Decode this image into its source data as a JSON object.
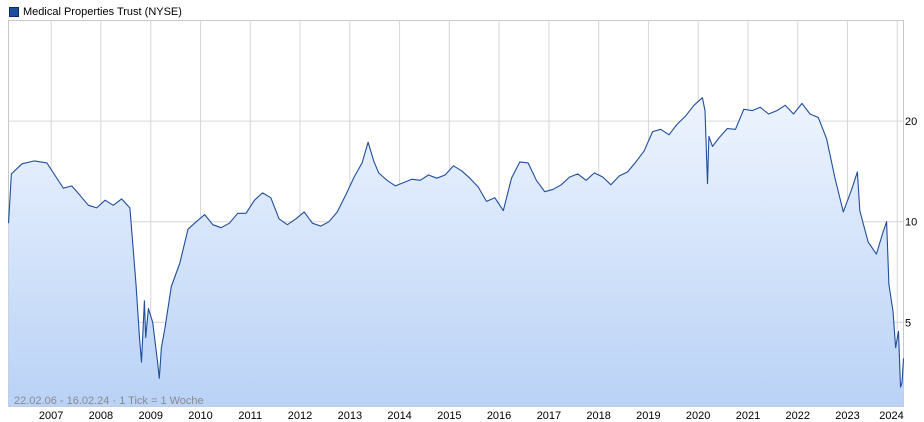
{
  "chart_data": {
    "type": "area",
    "title": "Medical Properties Trust (NYSE)",
    "legend": "top-left",
    "scale": "log",
    "grid": true,
    "range_note": "22.02.06 - 16.02.24 · 1 Tick = 1 Woche",
    "x_ticks": [
      "2007",
      "2008",
      "2009",
      "2010",
      "2011",
      "2012",
      "2013",
      "2014",
      "2015",
      "2016",
      "2017",
      "2018",
      "2019",
      "2020",
      "2021",
      "2022",
      "2023",
      "2024"
    ],
    "y_ticks": [
      "5",
      "10",
      "20"
    ],
    "ylim": [
      2.8,
      40
    ],
    "series": [
      {
        "name": "Medical Properties Trust (NYSE)",
        "color": "#1f4e9c",
        "fill_top": "#eef4fe",
        "fill_bottom": "#b9d2f6",
        "x": [
          "2006-02-22",
          "2006-03-15",
          "2006-06-01",
          "2006-09-01",
          "2006-12-01",
          "2007-02-01",
          "2007-04-01",
          "2007-06-01",
          "2007-08-01",
          "2007-10-01",
          "2007-12-01",
          "2008-02-01",
          "2008-04-01",
          "2008-06-01",
          "2008-08-01",
          "2008-09-15",
          "2008-10-10",
          "2008-10-25",
          "2008-11-15",
          "2008-11-25",
          "2008-12-15",
          "2009-01-15",
          "2009-02-20",
          "2009-03-05",
          "2009-03-20",
          "2009-04-15",
          "2009-06-01",
          "2009-08-01",
          "2009-10-01",
          "2009-12-01",
          "2010-02-01",
          "2010-04-01",
          "2010-06-01",
          "2010-08-01",
          "2010-10-01",
          "2010-12-01",
          "2011-02-01",
          "2011-04-01",
          "2011-06-01",
          "2011-08-01",
          "2011-10-01",
          "2011-12-01",
          "2012-02-01",
          "2012-04-01",
          "2012-06-01",
          "2012-08-01",
          "2012-10-01",
          "2012-12-01",
          "2013-02-01",
          "2013-04-01",
          "2013-05-15",
          "2013-06-25",
          "2013-08-01",
          "2013-10-01",
          "2013-12-01",
          "2014-02-01",
          "2014-04-01",
          "2014-06-01",
          "2014-08-01",
          "2014-10-01",
          "2014-12-01",
          "2015-02-01",
          "2015-04-01",
          "2015-06-01",
          "2015-08-01",
          "2015-10-01",
          "2015-12-01",
          "2016-02-01",
          "2016-04-01",
          "2016-06-01",
          "2016-08-01",
          "2016-10-01",
          "2016-12-01",
          "2017-02-01",
          "2017-04-01",
          "2017-06-01",
          "2017-08-01",
          "2017-10-01",
          "2017-12-01",
          "2018-02-01",
          "2018-04-01",
          "2018-06-01",
          "2018-08-01",
          "2018-10-01",
          "2018-12-01",
          "2019-02-01",
          "2019-04-01",
          "2019-06-01",
          "2019-08-01",
          "2019-10-01",
          "2019-12-01",
          "2020-02-01",
          "2020-02-20",
          "2020-03-10",
          "2020-03-20",
          "2020-04-15",
          "2020-06-01",
          "2020-08-01",
          "2020-10-01",
          "2020-12-01",
          "2021-02-01",
          "2021-04-01",
          "2021-06-01",
          "2021-08-01",
          "2021-10-01",
          "2021-12-01",
          "2022-02-01",
          "2022-04-01",
          "2022-06-01",
          "2022-08-01",
          "2022-10-01",
          "2022-12-01",
          "2023-02-01",
          "2023-03-15",
          "2023-04-01",
          "2023-06-01",
          "2023-08-01",
          "2023-09-15",
          "2023-10-15",
          "2023-11-01",
          "2023-12-01",
          "2023-12-20",
          "2024-01-10",
          "2024-01-25",
          "2024-02-05",
          "2024-02-16"
        ],
        "values": [
          9.9,
          13.9,
          14.9,
          15.2,
          15.0,
          13.7,
          12.6,
          12.8,
          12.0,
          11.2,
          11.0,
          11.6,
          11.2,
          11.7,
          11.0,
          6.5,
          4.5,
          3.8,
          5.8,
          4.5,
          5.5,
          5.0,
          3.8,
          3.4,
          4.2,
          4.8,
          6.4,
          7.5,
          9.5,
          10.0,
          10.5,
          9.8,
          9.6,
          9.9,
          10.6,
          10.6,
          11.6,
          12.2,
          11.8,
          10.2,
          9.8,
          10.2,
          10.7,
          9.9,
          9.7,
          10.0,
          10.7,
          12.0,
          13.6,
          15.0,
          17.3,
          15.2,
          14.0,
          13.3,
          12.8,
          13.1,
          13.4,
          13.3,
          13.8,
          13.5,
          13.8,
          14.7,
          14.2,
          13.5,
          12.7,
          11.5,
          11.8,
          10.8,
          13.5,
          15.1,
          15.0,
          13.3,
          12.3,
          12.5,
          12.9,
          13.6,
          13.9,
          13.3,
          14.0,
          13.6,
          12.9,
          13.7,
          14.1,
          15.1,
          16.3,
          18.6,
          18.9,
          18.2,
          19.6,
          20.7,
          22.3,
          23.5,
          21.5,
          13.0,
          18.0,
          16.8,
          17.8,
          19.0,
          18.9,
          21.7,
          21.5,
          22.0,
          21.0,
          21.5,
          22.3,
          21.0,
          22.6,
          21.0,
          20.5,
          17.7,
          13.5,
          10.7,
          12.5,
          14.1,
          10.8,
          8.7,
          8.0,
          9.2,
          10.0,
          6.5,
          5.4,
          4.2,
          4.7,
          3.2,
          3.3,
          3.9
        ]
      }
    ]
  }
}
